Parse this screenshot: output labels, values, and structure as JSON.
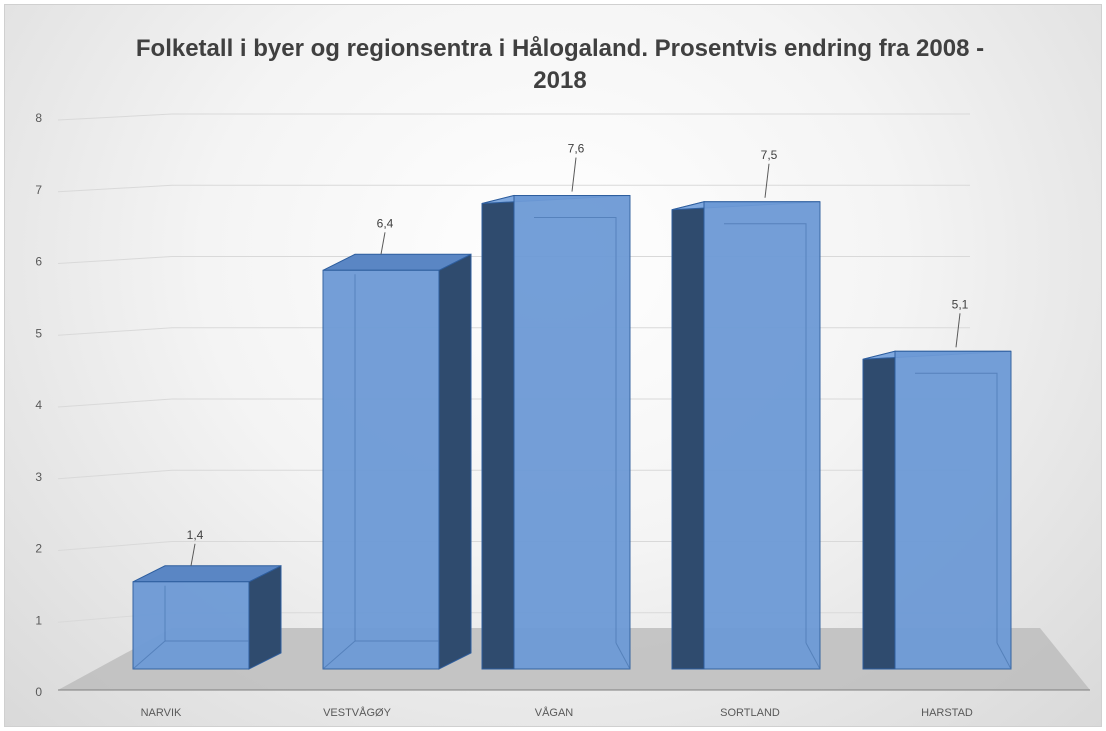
{
  "chart_data": {
    "type": "bar",
    "title": "Folketall i byer og regionsentra i Hålogaland.  Prosentvis endring fra 2008 - 2018",
    "categories": [
      "NARVIK",
      "VESTVÅGØY",
      "VÅGAN",
      "SORTLAND",
      "HARSTAD"
    ],
    "values": [
      1.4,
      6.4,
      7.6,
      7.5,
      5.1
    ],
    "data_labels": [
      "1,4",
      "6,4",
      "7,6",
      "7,5",
      "5,1"
    ],
    "yticks": [
      "0",
      "1",
      "2",
      "3",
      "4",
      "5",
      "6",
      "7",
      "8"
    ],
    "ylim": [
      0,
      8
    ],
    "xlabel": "",
    "ylabel": "",
    "grid": true,
    "legend": "none",
    "style": "3d-column",
    "colors": {
      "bar_front": "#6d9ad6",
      "bar_side": "#2f4b6e",
      "bar_edge": "#2e5e9e",
      "floor": "#bdbdbd",
      "gridline": "#d9d9d9"
    }
  }
}
